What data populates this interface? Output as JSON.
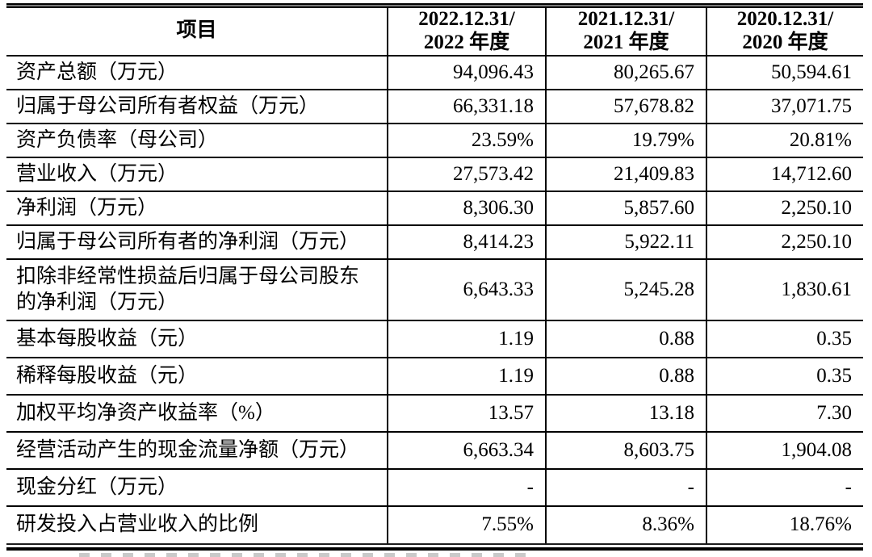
{
  "colors": {
    "border": "#000000",
    "background": "#ffffff",
    "text": "#000000"
  },
  "header": {
    "item": "项目",
    "periods": [
      {
        "line1": "2022.12.31/",
        "line2": "2022 年度"
      },
      {
        "line1": "2021.12.31/",
        "line2": "2021 年度"
      },
      {
        "line1": "2020.12.31/",
        "line2": "2020 年度"
      }
    ]
  },
  "rows": [
    {
      "label": "资产总额（万元）",
      "values": [
        "94,096.43",
        "80,265.67",
        "50,594.61"
      ]
    },
    {
      "label": "归属于母公司所有者权益（万元）",
      "values": [
        "66,331.18",
        "57,678.82",
        "37,071.75"
      ]
    },
    {
      "label": "资产负债率（母公司）",
      "values": [
        "23.59%",
        "19.79%",
        "20.81%"
      ]
    },
    {
      "label": "营业收入（万元）",
      "values": [
        "27,573.42",
        "21,409.83",
        "14,712.60"
      ]
    },
    {
      "label": "净利润（万元）",
      "values": [
        "8,306.30",
        "5,857.60",
        "2,250.10"
      ]
    },
    {
      "label": "归属于母公司所有者的净利润（万元）",
      "values": [
        "8,414.23",
        "5,922.11",
        "2,250.10"
      ]
    },
    {
      "label": "扣除非经常性损益后归属于母公司股东的净利润（万元）",
      "values": [
        "6,643.33",
        "5,245.28",
        "1,830.61"
      ]
    },
    {
      "label": "基本每股收益（元）",
      "values": [
        "1.19",
        "0.88",
        "0.35"
      ]
    },
    {
      "label": "稀释每股收益（元）",
      "values": [
        "1.19",
        "0.88",
        "0.35"
      ]
    },
    {
      "label": "加权平均净资产收益率（%）",
      "values": [
        "13.57",
        "13.18",
        "7.30"
      ]
    },
    {
      "label": "经营活动产生的现金流量净额（万元）",
      "values": [
        "6,663.34",
        "8,603.75",
        "1,904.08"
      ]
    },
    {
      "label": "现金分红（万元）",
      "values": [
        "-",
        "-",
        "-"
      ]
    },
    {
      "label": "研发投入占营业收入的比例",
      "values": [
        "7.55%",
        "8.36%",
        "18.76%"
      ]
    }
  ]
}
